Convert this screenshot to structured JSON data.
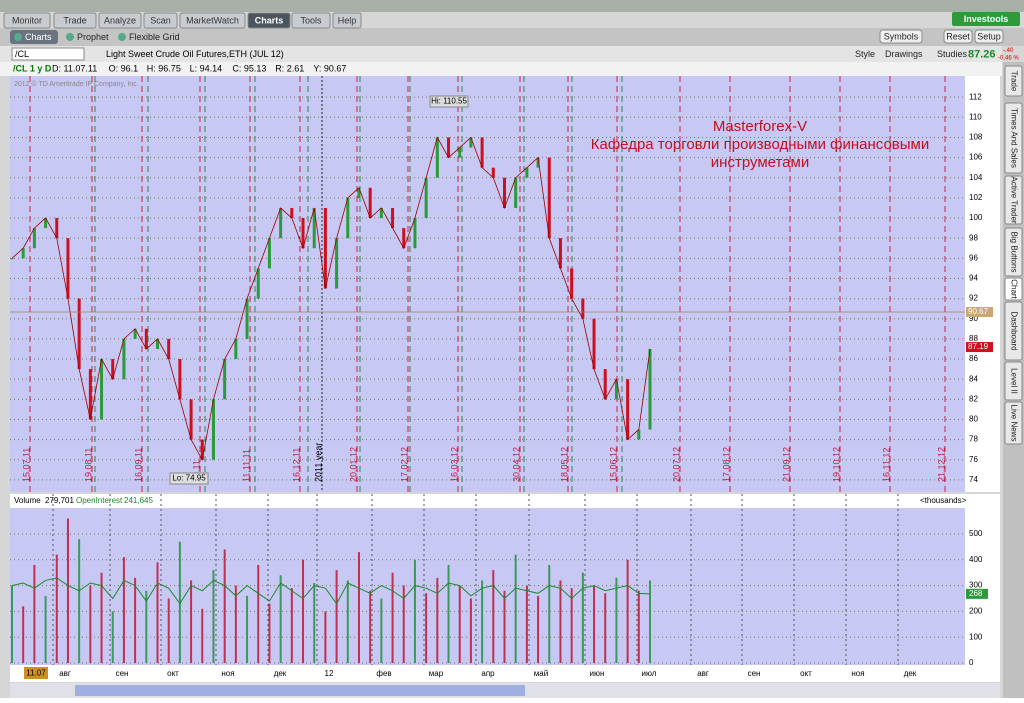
{
  "tabs": [
    "Monitor",
    "Trade",
    "Analyze",
    "Scan",
    "MarketWatch",
    "Charts",
    "Tools",
    "Help"
  ],
  "brand": "Investools",
  "subtabs": [
    "Charts",
    "Prophet",
    "Flexible Grid"
  ],
  "toolbar_buttons": [
    "Symbols",
    "Reset",
    "Setup"
  ],
  "chart_buttons": [
    "Style",
    "Drawings",
    "Studies"
  ],
  "symbol": "/CL",
  "description": "Light Sweet Crude Oil Futures,ETH (JUL 12)",
  "quote": {
    "last": "87.26",
    "change": "-.40",
    "percent": "-0.46 %"
  },
  "info": {
    "period": "/CL 1 y D",
    "fields": [
      "D: 11.07.11",
      "O: 96.1",
      "H: 96.75",
      "L: 94.14",
      "C: 95.13",
      "R: 2.61",
      "Y: 90.67"
    ]
  },
  "price_chart": {
    "type": "line",
    "copyright": "2012 © TD Ameritrade IP Company, Inc.",
    "ylim": [
      72.8,
      114.1
    ],
    "yticks": [
      74,
      76,
      78,
      80,
      82,
      84,
      86,
      88,
      90,
      92,
      94,
      96,
      98,
      100,
      102,
      104,
      106,
      108,
      110,
      112
    ],
    "date_labels": [
      "15.07.11",
      "19.08.11",
      "16.09.11",
      "10.11",
      "11.11.11",
      "16.12.11",
      "2011 year",
      "20.01.12",
      "17.02.12",
      "16.03.12",
      "30.04.12",
      "18.05.12",
      "15.06.12",
      "20.07.12",
      "17.08.12",
      "21.09.12",
      "19.10.12",
      "16.11.12",
      "21.12.12"
    ],
    "high_label": "Hi: 110.55",
    "low_label": "Lo: 74.95",
    "watermark": [
      "Masterforex-V",
      "Кафедра торговли производными финансовыми",
      "инструметами"
    ],
    "price_tags": [
      90.67,
      87.19
    ],
    "values": [
      96,
      97,
      99,
      100,
      98,
      92,
      85,
      80,
      86,
      84,
      88,
      89,
      87,
      88,
      86,
      82,
      78,
      76,
      82,
      86,
      88,
      92,
      95,
      98,
      101,
      100,
      97,
      101,
      93,
      98,
      102,
      103,
      100,
      101,
      99,
      97,
      100,
      104,
      108,
      106,
      107,
      108,
      105,
      104,
      101,
      104,
      105,
      106,
      98,
      95,
      92,
      90,
      85,
      82,
      84,
      78,
      79,
      87
    ]
  },
  "volume_chart": {
    "type": "bar",
    "labels": [
      "Volume",
      "279,701",
      "OpenInterest",
      "241,645",
      "<thousands>"
    ],
    "ylim": [
      0,
      655
    ],
    "yticks": [
      0,
      100,
      200,
      300,
      400,
      500
    ],
    "oi_tag": 268,
    "start_label": "11.07",
    "months": [
      "авг",
      "сен",
      "окт",
      "ноя",
      "дек",
      "12",
      "фев",
      "мар",
      "апр",
      "май",
      "июн",
      "июл",
      "авг",
      "сен",
      "окт",
      "ноя",
      "дек"
    ],
    "values": [
      300,
      220,
      380,
      260,
      420,
      560,
      480,
      300,
      350,
      200,
      410,
      330,
      280,
      390,
      250,
      470,
      320,
      210,
      360,
      440,
      300,
      260,
      380,
      230,
      340,
      290,
      400,
      310,
      200,
      360,
      320,
      430,
      280,
      250,
      350,
      300,
      400,
      270,
      330,
      380,
      300,
      250,
      320,
      360,
      280,
      420,
      300,
      260,
      380,
      320,
      290,
      350,
      300,
      270,
      330,
      400,
      280,
      320
    ],
    "open_interest": [
      300,
      310,
      290,
      320,
      330,
      300,
      280,
      310,
      300,
      250,
      320,
      300,
      240,
      310,
      290,
      230,
      300,
      280,
      320,
      300,
      260,
      300,
      270,
      240,
      310,
      280,
      250,
      300,
      290,
      230,
      310,
      290,
      270,
      300,
      280,
      250,
      300,
      290,
      270,
      310,
      300,
      260,
      290,
      300,
      250,
      290,
      280,
      270,
      300,
      290,
      250,
      290,
      300,
      280,
      290,
      300,
      270,
      268
    ]
  },
  "side_tabs": [
    "Trade",
    "Times And Sales",
    "Active Trader",
    "Big Buttons",
    "Chart",
    "Dashboard",
    "Level II",
    "Live News"
  ]
}
